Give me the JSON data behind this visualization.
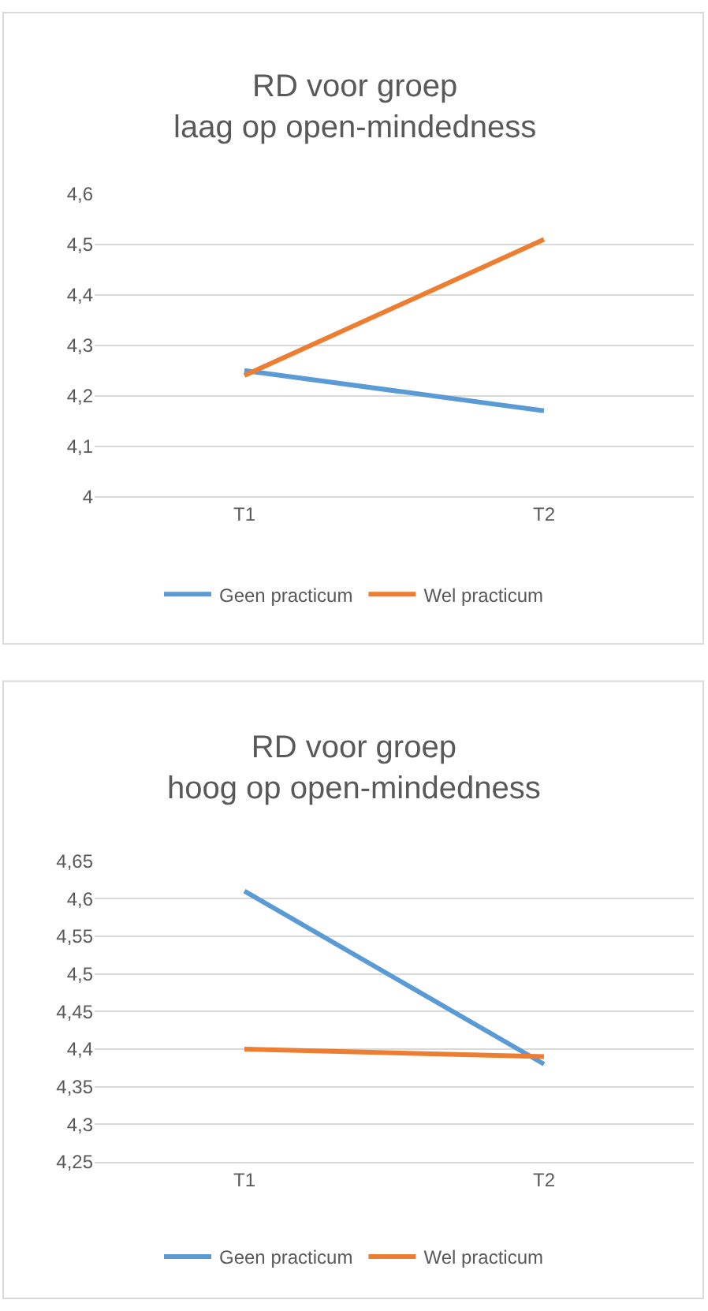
{
  "chart_data": [
    {
      "type": "line",
      "title": "RD voor groep\nlaag op open-mindedness",
      "categories": [
        "T1",
        "T2"
      ],
      "series": [
        {
          "name": "Geen practicum",
          "color": "#5b9bd5",
          "values": [
            4.25,
            4.17
          ]
        },
        {
          "name": "Wel practicum",
          "color": "#ed7d31",
          "values": [
            4.24,
            4.51
          ]
        }
      ],
      "ylim": [
        4,
        4.6
      ],
      "yticks": [
        4,
        {
          "value": 4.1,
          "label": "4,1"
        },
        {
          "value": 4.2,
          "label": "4,2"
        },
        {
          "value": 4.3,
          "label": "4,3"
        },
        {
          "value": 4.4,
          "label": "4,4"
        },
        {
          "value": 4.5,
          "label": "4,5"
        },
        {
          "value": 4.6,
          "label": "4,6"
        }
      ],
      "grid": "y",
      "legend": "bottom",
      "marker": "none",
      "line_style": "solid"
    },
    {
      "type": "line",
      "title": "RD voor groep\nhoog op open-mindedness",
      "categories": [
        "T1",
        "T2"
      ],
      "series": [
        {
          "name": "Geen practicum",
          "color": "#5b9bd5",
          "values": [
            4.61,
            4.38
          ]
        },
        {
          "name": "Wel practicum",
          "color": "#ed7d31",
          "values": [
            4.4,
            4.39
          ]
        }
      ],
      "ylim": [
        4.25,
        4.65
      ],
      "yticks": [
        {
          "value": 4.25,
          "label": "4,25"
        },
        {
          "value": 4.3,
          "label": "4,3"
        },
        {
          "value": 4.35,
          "label": "4,35"
        },
        {
          "value": 4.4,
          "label": "4,4"
        },
        {
          "value": 4.45,
          "label": "4,45"
        },
        {
          "value": 4.5,
          "label": "4,5"
        },
        {
          "value": 4.55,
          "label": "4,55"
        },
        {
          "value": 4.6,
          "label": "4,6"
        },
        {
          "value": 4.65,
          "label": "4,65"
        }
      ],
      "grid": "y",
      "legend": "bottom",
      "marker": "none",
      "line_style": "solid"
    }
  ]
}
